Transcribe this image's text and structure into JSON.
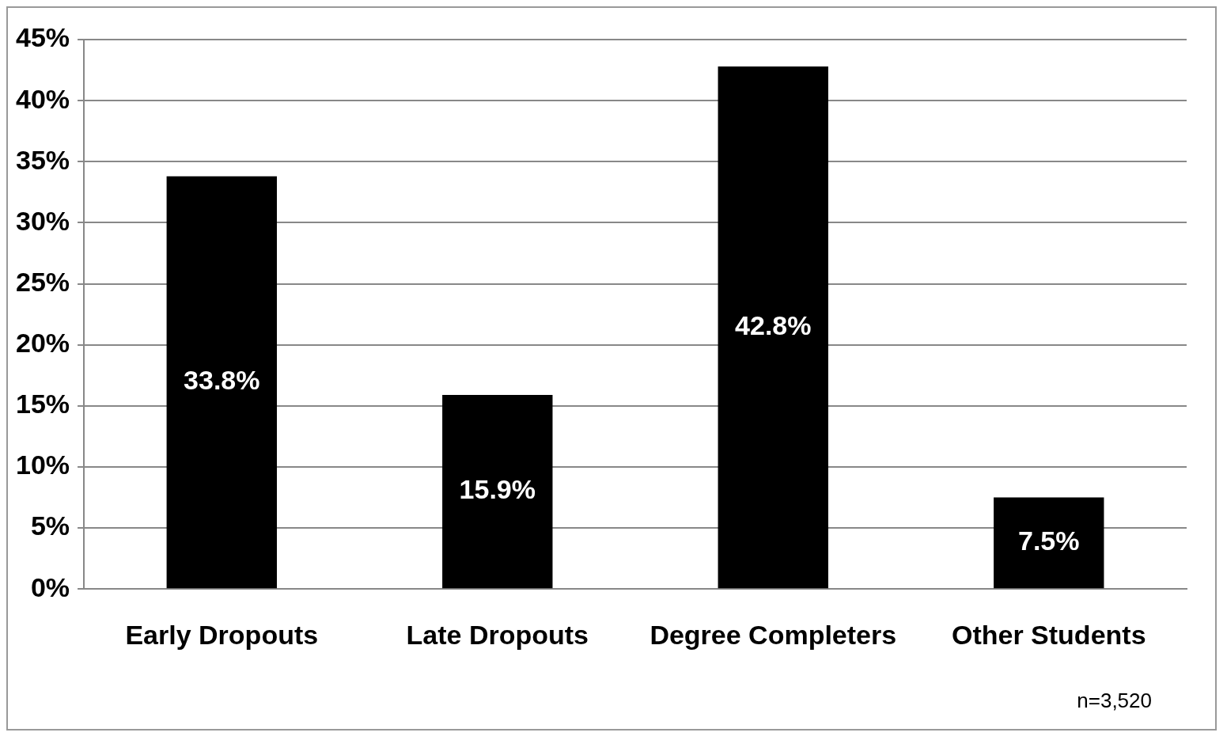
{
  "chart_data": {
    "type": "bar",
    "categories": [
      "Early Dropouts",
      "Late Dropouts",
      "Degree Completers",
      "Other Students"
    ],
    "values": [
      33.8,
      15.9,
      42.8,
      7.5
    ],
    "value_labels": [
      "33.8%",
      "15.9%",
      "42.8%",
      "7.5%"
    ],
    "color": "#000000",
    "ylim": [
      0,
      45
    ],
    "yticks": [
      {
        "value": 0,
        "label": "0%"
      },
      {
        "value": 5,
        "label": "5%"
      },
      {
        "value": 10,
        "label": "10%"
      },
      {
        "value": 15,
        "label": "15%"
      },
      {
        "value": 20,
        "label": "20%"
      },
      {
        "value": 25,
        "label": "25%"
      },
      {
        "value": 30,
        "label": "30%"
      },
      {
        "value": 35,
        "label": "35%"
      },
      {
        "value": 40,
        "label": "40%"
      },
      {
        "value": 45,
        "label": "45%"
      }
    ],
    "grid": "y",
    "legend": false,
    "annotations": [
      "n=3,520"
    ]
  }
}
